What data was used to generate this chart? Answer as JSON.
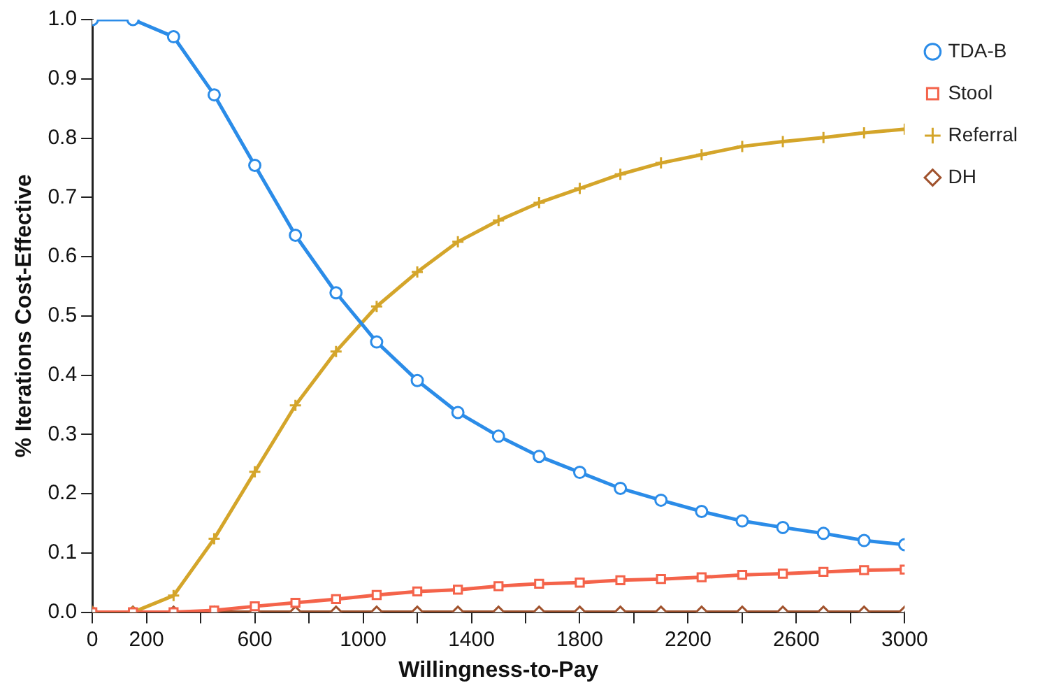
{
  "chart_data": {
    "type": "line",
    "xlabel": "Willingness-to-Pay",
    "ylabel": "% Iterations Cost-Effective",
    "x": [
      0,
      150,
      300,
      450,
      600,
      750,
      900,
      1050,
      1200,
      1350,
      1500,
      1650,
      1800,
      1950,
      2100,
      2250,
      2400,
      2550,
      2700,
      2850,
      3000
    ],
    "xlim": [
      0,
      3000
    ],
    "xticks": [
      0,
      200,
      {
        "value": 400,
        "label": null
      },
      600,
      {
        "value": 800,
        "label": null
      },
      1000,
      {
        "value": 1200,
        "label": null
      },
      1400,
      {
        "value": 1600,
        "label": null
      },
      1800,
      {
        "value": 2000,
        "label": null
      },
      2200,
      {
        "value": 2400,
        "label": null
      },
      2600,
      {
        "value": 2800,
        "label": null
      },
      3000
    ],
    "ylim": [
      0,
      1
    ],
    "yticks": [
      {
        "value": 0,
        "label": "0.0"
      },
      0.1,
      0.2,
      0.3,
      0.4,
      0.5,
      0.6,
      0.7,
      0.8,
      0.9,
      {
        "value": 1,
        "label": "1.0"
      }
    ],
    "grid": false,
    "legend": "top right",
    "series": [
      {
        "name": "TDA-B",
        "color": "#2b8ce8",
        "marker": "circle",
        "values": [
          1.0,
          1.0,
          0.971,
          0.873,
          0.754,
          0.636,
          0.539,
          0.456,
          0.391,
          0.337,
          0.297,
          0.263,
          0.236,
          0.209,
          0.189,
          0.17,
          0.154,
          0.143,
          0.133,
          0.121,
          0.114
        ]
      },
      {
        "name": "Stool",
        "color": "#f4634a",
        "marker": "square",
        "values": [
          0,
          0,
          0,
          0.003,
          0.01,
          0.016,
          0.022,
          0.029,
          0.035,
          0.038,
          0.044,
          0.048,
          0.05,
          0.054,
          0.056,
          0.059,
          0.063,
          0.065,
          0.068,
          0.071,
          0.072
        ]
      },
      {
        "name": "Referral",
        "color": "#d4a52a",
        "marker": "cross",
        "values": [
          0,
          0,
          0.028,
          0.124,
          0.237,
          0.349,
          0.44,
          0.516,
          0.574,
          0.625,
          0.661,
          0.691,
          0.715,
          0.739,
          0.758,
          0.772,
          0.786,
          0.794,
          0.801,
          0.809,
          0.815
        ]
      },
      {
        "name": "DH",
        "color": "#a0522d",
        "marker": "diamond",
        "values": [
          0,
          0,
          0,
          0,
          0,
          0,
          0,
          0,
          0,
          0,
          0,
          0,
          0,
          0,
          0,
          0,
          0,
          0,
          0,
          0,
          0
        ]
      }
    ]
  }
}
